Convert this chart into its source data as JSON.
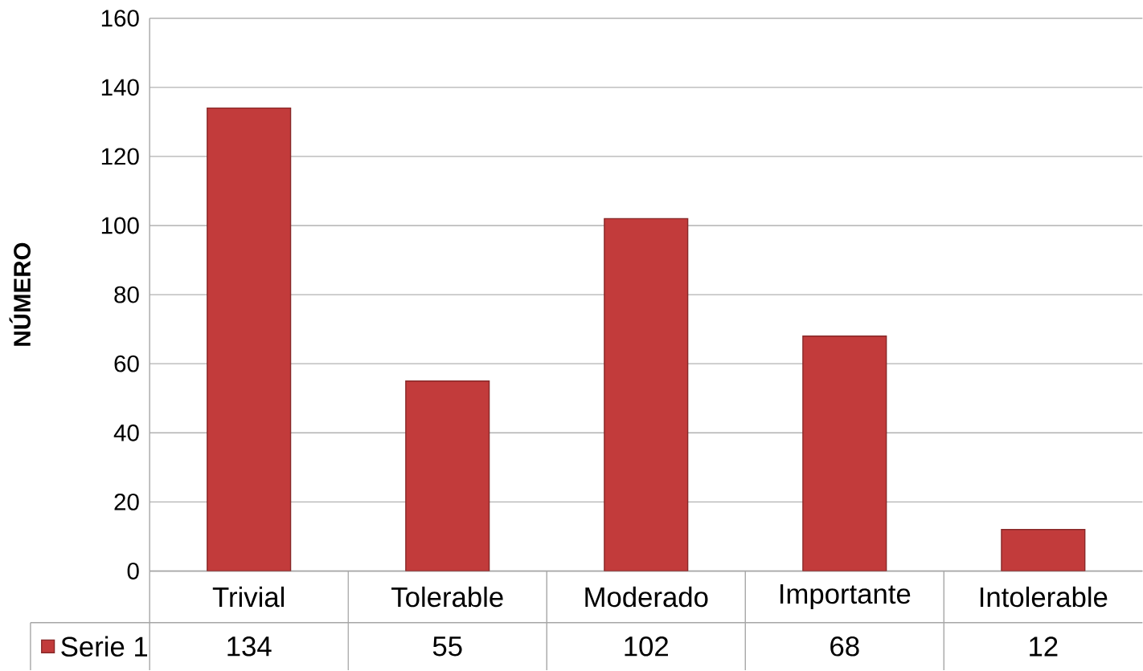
{
  "chart_data": {
    "type": "bar",
    "ylabel": "NÚMERO",
    "categories": [
      "Trivial",
      "Tolerable",
      "Moderado",
      "Importante",
      "Intolerable"
    ],
    "series": [
      {
        "name": "Serie 1",
        "color": "#c23b3b",
        "values": [
          134,
          55,
          102,
          68,
          12
        ]
      }
    ],
    "ylim": [
      0,
      160
    ],
    "yticks": [
      0,
      20,
      40,
      60,
      80,
      100,
      120,
      140,
      160
    ],
    "grid": "y",
    "data_labels": true,
    "legend": "bottom"
  }
}
